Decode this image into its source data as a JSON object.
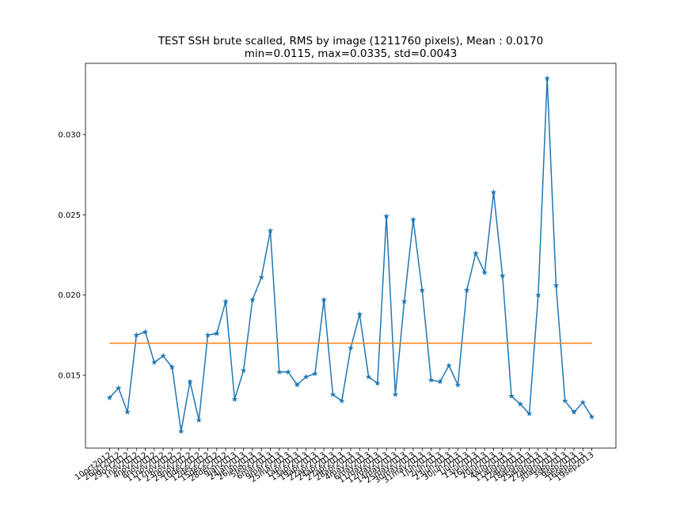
{
  "chart_data": {
    "type": "line",
    "title": "TEST SSH brute scalled, RMS by image (1211760 pixels), Mean : 0.0170",
    "subtitle": "min=0.0115, max=0.0335, std=0.0043",
    "categories": [
      "10oct2012",
      "26oct2012",
      "29oct2012",
      "1nov2012",
      "4nov2012",
      "8nov2012",
      "11nov2012",
      "17nov2012",
      "23nov2012",
      "29nov2012",
      "10dec2012",
      "12dec2012",
      "15dec2012",
      "28dec2012",
      "9jan2013",
      "24jan2013",
      "26jan2013",
      "5feb2013",
      "6mar2013",
      "9mar2013",
      "25mar2013",
      "1apr2013",
      "13apr2013",
      "19apr2013",
      "22apr2013",
      "24apr2013",
      "27apr2013",
      "28apr2013",
      "4may2013",
      "6may2013",
      "11may2013",
      "12may2013",
      "14may2013",
      "25may2013",
      "30may2013",
      "31may2013",
      "1jun2013",
      "2jun2013",
      "23jun2013",
      "30jun2013",
      "1jul2013",
      "13jul2013",
      "16jul2013",
      "20jul2013",
      "4aug2013",
      "11aug2013",
      "12aug2013",
      "18aug2013",
      "25aug2013",
      "27aug2013",
      "30aug2013",
      "3sep2013",
      "9sep2013",
      "16sep2013",
      "19sep2013"
    ],
    "series": [
      {
        "color": "#1f77b4",
        "values": [
          0.0136,
          0.0142,
          0.0127,
          0.0175,
          0.0177,
          0.0158,
          0.0162,
          0.0155,
          0.0115,
          0.0146,
          0.0122,
          0.0175,
          0.0176,
          0.0196,
          0.0135,
          0.0153,
          0.0197,
          0.0211,
          0.024,
          0.0152,
          0.0152,
          0.0144,
          0.0149,
          0.0151,
          0.0197,
          0.0138,
          0.0134,
          0.0167,
          0.0188,
          0.0149,
          0.0145,
          0.0249,
          0.0138,
          0.0196,
          0.0247,
          0.0203,
          0.0147,
          0.0146,
          0.0156,
          0.0144,
          0.0203,
          0.0226,
          0.0214,
          0.0264,
          0.0212,
          0.0137,
          0.0132,
          0.0126,
          0.02,
          0.0335,
          0.0206,
          0.0134,
          0.0127,
          0.0133,
          0.0124
        ]
      }
    ],
    "mean": 0.017,
    "mean_color": "#ff7f0e",
    "ylim": [
      0.01046,
      0.03444
    ],
    "yticks": [
      {
        "value": 0.015,
        "label": "0.015"
      },
      {
        "value": 0.02,
        "label": "0.020"
      },
      {
        "value": 0.025,
        "label": "0.025"
      },
      {
        "value": 0.03,
        "label": "0.030"
      }
    ]
  }
}
